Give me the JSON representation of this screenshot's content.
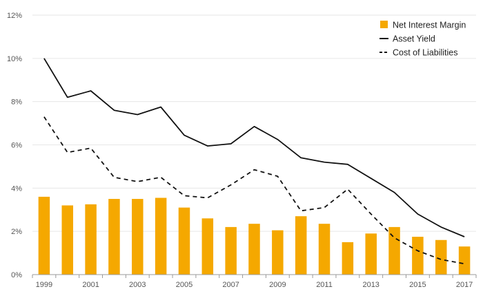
{
  "chart_data": {
    "type": "bar+line",
    "title": "",
    "xlabel": "",
    "ylabel": "",
    "x": [
      1999,
      2000,
      2001,
      2002,
      2003,
      2004,
      2005,
      2006,
      2007,
      2008,
      2009,
      2010,
      2011,
      2012,
      2013,
      2014,
      2015,
      2016,
      2017
    ],
    "x_tick_labels": [
      "1999",
      "2001",
      "2003",
      "2005",
      "2007",
      "2009",
      "2011",
      "2013",
      "2015",
      "2017"
    ],
    "ylim": [
      0,
      12
    ],
    "y_ticks": [
      0,
      2,
      4,
      6,
      8,
      10,
      12
    ],
    "y_tick_labels": [
      "0%",
      "2%",
      "4%",
      "6%",
      "8%",
      "10%",
      "12%"
    ],
    "grid": true,
    "legend_position": "top-right",
    "series": [
      {
        "name": "Net Interest Margin",
        "kind": "bar",
        "color": "#F5A800",
        "values": [
          3.6,
          3.2,
          3.25,
          3.5,
          3.5,
          3.55,
          3.1,
          2.6,
          2.2,
          2.35,
          2.05,
          2.7,
          2.35,
          1.5,
          1.9,
          2.2,
          1.75,
          1.6,
          1.3
        ]
      },
      {
        "name": "Asset Yield",
        "kind": "line",
        "style": "solid",
        "color": "#111111",
        "values": [
          10.0,
          8.2,
          8.5,
          7.6,
          7.4,
          7.75,
          6.45,
          5.95,
          6.05,
          6.85,
          6.25,
          5.4,
          5.2,
          5.1,
          4.45,
          3.8,
          2.8,
          2.2,
          1.75
        ]
      },
      {
        "name": "Cost of Liabilities",
        "kind": "line",
        "style": "dashed",
        "color": "#111111",
        "values": [
          7.3,
          5.65,
          5.85,
          4.5,
          4.3,
          4.5,
          3.65,
          3.55,
          4.15,
          4.85,
          4.55,
          2.95,
          3.1,
          3.95,
          2.8,
          1.7,
          1.1,
          0.7,
          0.5
        ]
      }
    ]
  }
}
